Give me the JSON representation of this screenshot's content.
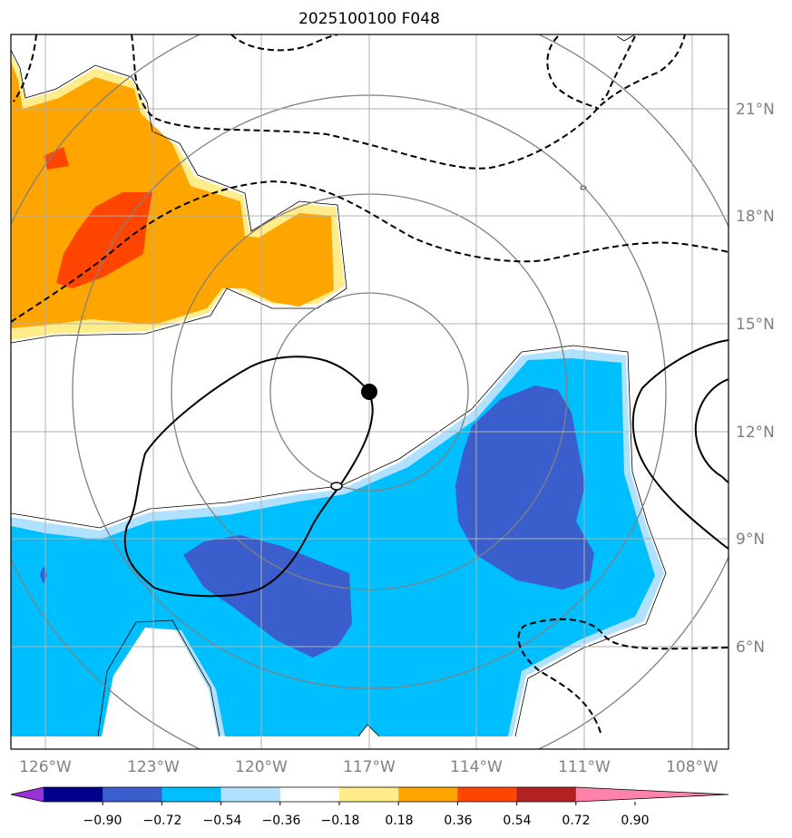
{
  "chart_data": {
    "type": "map-contour",
    "title": "2025100100 F048",
    "lon_ticks": [
      "126°W",
      "123°W",
      "120°W",
      "117°W",
      "114°W",
      "111°W",
      "108°W"
    ],
    "lat_ticks": [
      "6°N",
      "9°N",
      "12°N",
      "15°N",
      "18°N",
      "21°N"
    ],
    "lon_range": [
      -127,
      -107
    ],
    "lat_range": [
      3.5,
      23.5
    ],
    "center": {
      "lon": -117.0,
      "lat": 13.1
    },
    "range_rings": 4,
    "colorbar": {
      "levels": [
        "−0.90",
        "−0.72",
        "−0.54",
        "−0.36",
        "−0.18",
        "0.18",
        "0.36",
        "0.54",
        "0.72",
        "0.90"
      ],
      "colors": [
        "#9b30d9",
        "#00008b",
        "#3a5fcd",
        "#00bfff",
        "#b0e2ff",
        "#ffffff",
        "#ffec8b",
        "#ffa500",
        "#ff4500",
        "#b22222",
        "#ff82ab"
      ]
    }
  }
}
